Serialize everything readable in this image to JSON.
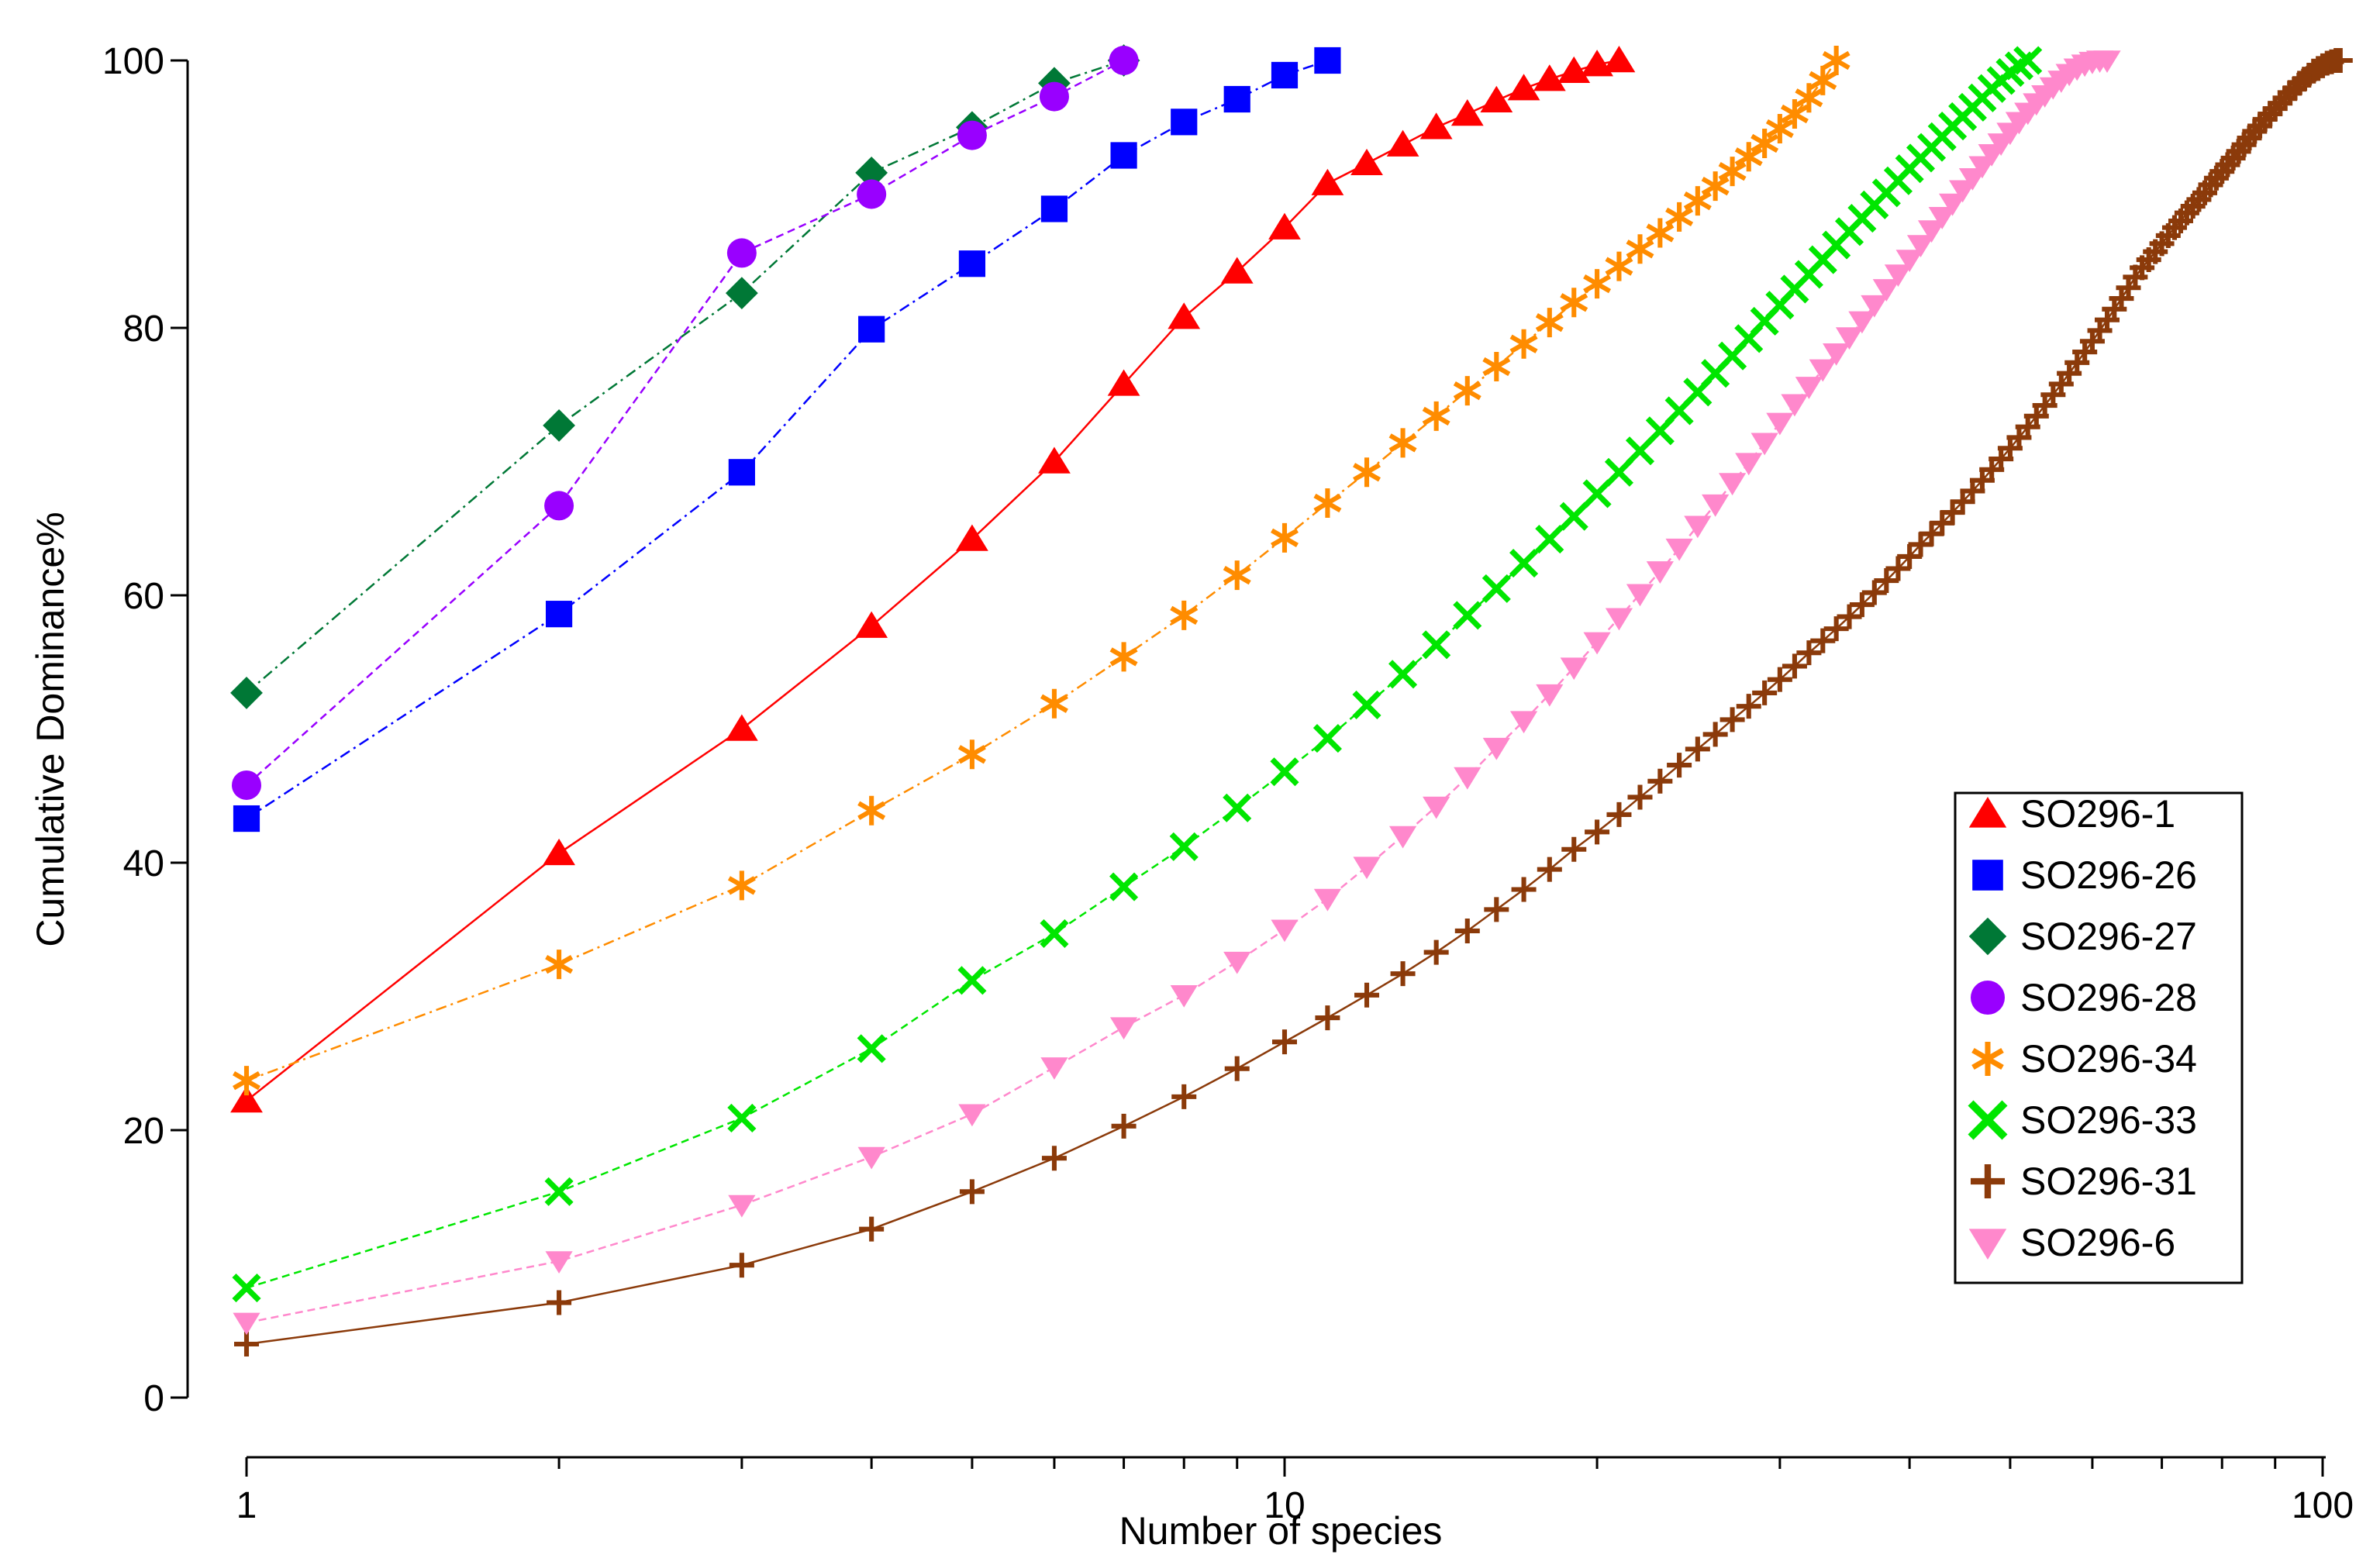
{
  "chart_data": {
    "type": "line",
    "title": "",
    "xlabel": "Number of species",
    "ylabel": "Cumulative Dominance%",
    "xscale": "log",
    "xlim": [
      1,
      100
    ],
    "ylim": [
      0,
      100
    ],
    "xticks": [
      1,
      10,
      100
    ],
    "yticks": [
      0,
      20,
      40,
      60,
      80,
      100
    ],
    "grid": false,
    "legend_position": "bottom-right",
    "series": [
      {
        "name": "SO296-1",
        "color": "#ff0000",
        "marker": "triangle-up",
        "dash": "solid",
        "species_count": 21,
        "values": [
          22.2,
          40.7,
          50.0,
          57.7,
          64.2,
          70.0,
          75.8,
          80.8,
          84.2,
          87.5,
          90.8,
          92.3,
          93.7,
          95.0,
          96.0,
          97.0,
          97.9,
          98.6,
          99.2,
          99.7,
          100.0
        ]
      },
      {
        "name": "SO296-26",
        "color": "#0000ff",
        "marker": "square",
        "dash": "dashdot",
        "species_count": 11,
        "values": [
          43.3,
          58.6,
          69.2,
          79.9,
          84.8,
          88.9,
          92.9,
          95.4,
          97.1,
          98.9,
          100.0
        ]
      },
      {
        "name": "SO296-27",
        "color": "#007836",
        "marker": "diamond",
        "dash": "dashdot",
        "species_count": 7,
        "values": [
          52.7,
          72.7,
          82.6,
          91.6,
          95.0,
          98.3,
          100.0
        ]
      },
      {
        "name": "SO296-28",
        "color": "#9900ff",
        "marker": "circle",
        "dash": "dashed",
        "species_count": 7,
        "values": [
          45.8,
          66.7,
          85.6,
          90.0,
          94.4,
          97.3,
          100.0
        ]
      },
      {
        "name": "SO296-34",
        "color": "#ff8c00",
        "marker": "asterisk",
        "dash": "dashdot",
        "species_count": 34,
        "values": [
          23.7,
          32.4,
          38.3,
          43.9,
          48.1,
          51.9,
          55.4,
          58.5,
          61.5,
          64.3,
          66.9,
          69.2,
          71.4,
          73.4,
          75.3,
          77.1,
          78.8,
          80.4,
          81.9,
          83.3,
          84.6,
          85.9,
          87.1,
          88.3,
          89.5,
          90.6,
          91.7,
          92.8,
          93.8,
          94.9,
          96.0,
          97.2,
          98.5,
          100.0
        ]
      },
      {
        "name": "SO296-33",
        "color": "#00e600",
        "marker": "x",
        "dash": "dashed",
        "species_count": 52,
        "values": [
          8.2,
          15.4,
          20.9,
          26.1,
          31.2,
          34.7,
          38.2,
          41.2,
          44.1,
          46.8,
          49.3,
          51.8,
          54.1,
          56.3,
          58.5,
          60.5,
          62.4,
          64.2,
          65.9,
          67.6,
          69.2,
          70.8,
          72.3,
          73.8,
          75.2,
          76.6,
          77.9,
          79.2,
          80.5,
          81.7,
          82.9,
          84.0,
          85.1,
          86.2,
          87.2,
          88.2,
          89.2,
          90.1,
          91.0,
          91.9,
          92.7,
          93.5,
          94.3,
          95.1,
          95.8,
          96.5,
          97.2,
          97.9,
          98.5,
          99.1,
          99.6,
          100.0
        ]
      },
      {
        "name": "SO296-31",
        "color": "#8b3a0a",
        "marker": "plus",
        "dash": "solid",
        "species_count": 104,
        "values": [
          4.0,
          7.1,
          9.9,
          12.6,
          15.4,
          17.9,
          20.3,
          22.5,
          24.6,
          26.6,
          28.4,
          30.1,
          31.7,
          33.3,
          34.9,
          36.5,
          38.0,
          39.5,
          41.0,
          42.3,
          43.6,
          44.9,
          46.1,
          47.3,
          48.5,
          49.6,
          50.7,
          51.7,
          52.7,
          53.7,
          54.7,
          55.7,
          56.6,
          57.5,
          58.4,
          59.3,
          60.2,
          61.1,
          62.0,
          62.9,
          63.8,
          64.6,
          65.4,
          66.2,
          67.0,
          67.8,
          68.6,
          69.4,
          70.2,
          71.0,
          71.8,
          72.6,
          73.4,
          74.2,
          75.0,
          75.8,
          76.6,
          77.4,
          78.2,
          79.0,
          79.8,
          80.6,
          81.4,
          82.2,
          83.0,
          83.8,
          84.5,
          85.1,
          85.7,
          86.3,
          86.9,
          87.5,
          88.0,
          88.6,
          89.1,
          89.6,
          90.1,
          90.7,
          91.2,
          91.7,
          92.2,
          92.7,
          93.2,
          93.7,
          94.2,
          94.7,
          95.1,
          95.6,
          96.0,
          96.4,
          96.8,
          97.2,
          97.6,
          97.9,
          98.3,
          98.6,
          98.9,
          99.2,
          99.4,
          99.6,
          99.8,
          99.9,
          100.0,
          100.0
        ]
      },
      {
        "name": "SO296-6",
        "color": "#ff88cc",
        "marker": "triangle-down",
        "dash": "dashed",
        "species_count": 62,
        "values": [
          5.6,
          10.2,
          14.4,
          18.0,
          21.2,
          24.7,
          27.7,
          30.1,
          32.6,
          35.0,
          37.3,
          39.7,
          42.0,
          44.2,
          46.4,
          48.6,
          50.6,
          52.6,
          54.6,
          56.5,
          58.3,
          60.1,
          61.8,
          63.5,
          65.2,
          66.8,
          68.4,
          69.9,
          71.4,
          72.9,
          74.3,
          75.6,
          76.9,
          78.1,
          79.3,
          80.5,
          81.7,
          82.9,
          84.0,
          85.1,
          86.2,
          87.3,
          88.3,
          89.3,
          90.3,
          91.2,
          92.1,
          93.0,
          93.8,
          94.6,
          95.4,
          96.1,
          96.8,
          97.4,
          98.0,
          98.5,
          99.0,
          99.4,
          99.7,
          99.9,
          100.0,
          100.0
        ]
      }
    ]
  }
}
